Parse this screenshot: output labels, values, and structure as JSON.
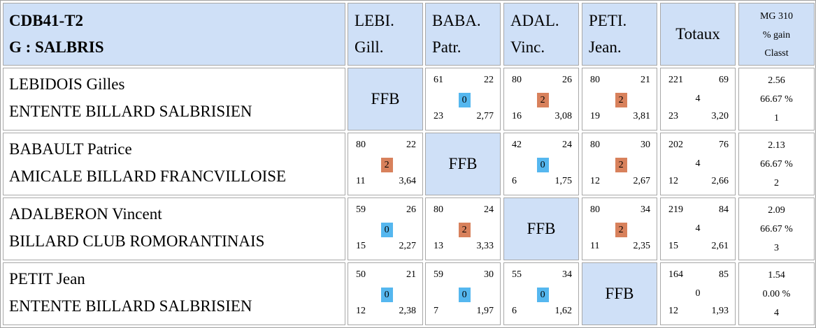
{
  "header": {
    "title_line1": "CDB41-T2",
    "title_line2": "G : SALBRIS",
    "columns": [
      {
        "line1": "LEBI.",
        "line2": "Gill."
      },
      {
        "line1": "BABA.",
        "line2": "Patr."
      },
      {
        "line1": "ADAL.",
        "line2": "Vinc."
      },
      {
        "line1": "PETI.",
        "line2": "Jean."
      }
    ],
    "totaux": "Totaux",
    "mg_line1": "MG 310",
    "mg_line2": "% gain",
    "mg_line3": "Classt"
  },
  "colors": {
    "header_bg": "#cfe0f7",
    "badge_zero": "#55b7ef",
    "badge_two": "#d8815c"
  },
  "players": [
    {
      "name": "LEBIDOIS Gilles",
      "club": "ENTENTE BILLARD SALBRISIEN",
      "ffb": "FFB",
      "results": [
        null,
        {
          "points": "61",
          "serie": "22",
          "badge": "0",
          "reprises": "23",
          "moyenne": "2,77"
        },
        {
          "points": "80",
          "serie": "26",
          "badge": "2",
          "reprises": "16",
          "moyenne": "3,08"
        },
        {
          "points": "80",
          "serie": "21",
          "badge": "2",
          "reprises": "19",
          "moyenne": "3,81"
        }
      ],
      "totals": {
        "points": "221",
        "serie": "69",
        "match_points": "4",
        "reprises": "23",
        "moyenne": "3,20"
      },
      "mg": {
        "value": "2.56",
        "pct": "66.67 %",
        "rank": "1"
      }
    },
    {
      "name": "BABAULT Patrice",
      "club": "AMICALE BILLARD FRANCVILLOISE",
      "ffb": "FFB",
      "results": [
        {
          "points": "80",
          "serie": "22",
          "badge": "2",
          "reprises": "11",
          "moyenne": "3,64"
        },
        null,
        {
          "points": "42",
          "serie": "24",
          "badge": "0",
          "reprises": "6",
          "moyenne": "1,75"
        },
        {
          "points": "80",
          "serie": "30",
          "badge": "2",
          "reprises": "12",
          "moyenne": "2,67"
        }
      ],
      "totals": {
        "points": "202",
        "serie": "76",
        "match_points": "4",
        "reprises": "12",
        "moyenne": "2,66"
      },
      "mg": {
        "value": "2.13",
        "pct": "66.67 %",
        "rank": "2"
      }
    },
    {
      "name": "ADALBERON Vincent",
      "club": "BILLARD CLUB ROMORANTINAIS",
      "ffb": "FFB",
      "results": [
        {
          "points": "59",
          "serie": "26",
          "badge": "0",
          "reprises": "15",
          "moyenne": "2,27"
        },
        {
          "points": "80",
          "serie": "24",
          "badge": "2",
          "reprises": "13",
          "moyenne": "3,33"
        },
        null,
        {
          "points": "80",
          "serie": "34",
          "badge": "2",
          "reprises": "11",
          "moyenne": "2,35"
        }
      ],
      "totals": {
        "points": "219",
        "serie": "84",
        "match_points": "4",
        "reprises": "15",
        "moyenne": "2,61"
      },
      "mg": {
        "value": "2.09",
        "pct": "66.67 %",
        "rank": "3"
      }
    },
    {
      "name": "PETIT Jean",
      "club": "ENTENTE BILLARD SALBRISIEN",
      "ffb": "FFB",
      "results": [
        {
          "points": "50",
          "serie": "21",
          "badge": "0",
          "reprises": "12",
          "moyenne": "2,38"
        },
        {
          "points": "59",
          "serie": "30",
          "badge": "0",
          "reprises": "7",
          "moyenne": "1,97"
        },
        {
          "points": "55",
          "serie": "34",
          "badge": "0",
          "reprises": "6",
          "moyenne": "1,62"
        },
        null
      ],
      "totals": {
        "points": "164",
        "serie": "85",
        "match_points": "0",
        "reprises": "12",
        "moyenne": "1,93"
      },
      "mg": {
        "value": "1.54",
        "pct": "0.00 %",
        "rank": "4"
      }
    }
  ]
}
